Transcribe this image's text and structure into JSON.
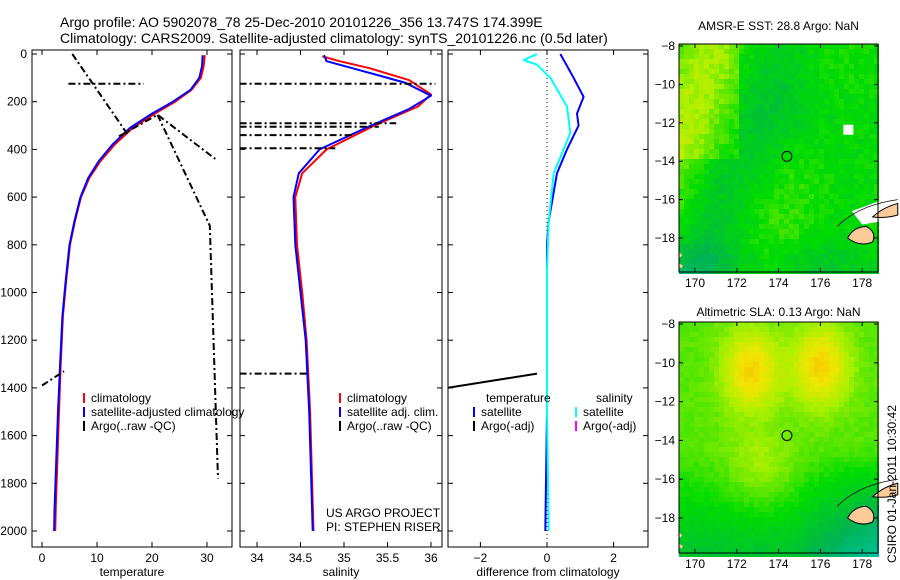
{
  "title_line1": "Argo profile: AO 5902078_78 25-Dec-2010 20101226_356 13.747S 174.399E",
  "title_line2": "Climatology: CARS2009. Satellite-adjusted climatology: synTS_20101226.nc (0.5d later)",
  "credit_line1": "US ARGO PROJECT",
  "credit_line2": "PI: STEPHEN RISER",
  "timestamp": "CSIRO 01-Jan-2011 10:30:42",
  "colors": {
    "climatology": "#ff0000",
    "satellite": "#0000ff",
    "argo": "#000000",
    "salinity_sat": "#00ffff",
    "salinity_argo": "#ff00ff"
  },
  "chart_data": [
    {
      "type": "line",
      "id": "temperature",
      "xlabel": "temperature",
      "xlim": [
        -2,
        32
      ],
      "ylim": [
        2050,
        0
      ],
      "xticks": [
        0,
        10,
        20,
        30
      ],
      "yticks": [
        0,
        200,
        400,
        600,
        800,
        1000,
        1200,
        1400,
        1600,
        1800,
        2000
      ],
      "legend": [
        "climatology",
        "satellite-adjusted climatology",
        "Argo(..raw -QC)"
      ],
      "series": [
        {
          "name": "climatology",
          "color": "#ff0000",
          "points": [
            [
              29.6,
              5
            ],
            [
              29.4,
              50
            ],
            [
              28.9,
              100
            ],
            [
              27.2,
              150
            ],
            [
              24.2,
              200
            ],
            [
              20.5,
              250
            ],
            [
              16.5,
              310
            ],
            [
              13.2,
              380
            ],
            [
              10.6,
              450
            ],
            [
              8.6,
              520
            ],
            [
              7.1,
              600
            ],
            [
              6,
              700
            ],
            [
              5.1,
              800
            ],
            [
              4.4,
              950
            ],
            [
              3.8,
              1100
            ],
            [
              3.4,
              1300
            ],
            [
              3.1,
              1500
            ],
            [
              2.8,
              1700
            ],
            [
              2.5,
              1900
            ],
            [
              2.4,
              2000
            ]
          ]
        },
        {
          "name": "satellite-adjusted climatology",
          "color": "#0000ff",
          "points": [
            [
              29.2,
              5
            ],
            [
              29.1,
              50
            ],
            [
              28.6,
              100
            ],
            [
              27,
              150
            ],
            [
              23.8,
              200
            ],
            [
              20,
              250
            ],
            [
              16,
              310
            ],
            [
              12.8,
              380
            ],
            [
              10.3,
              450
            ],
            [
              8.4,
              520
            ],
            [
              7,
              600
            ],
            [
              5.9,
              700
            ],
            [
              5,
              800
            ],
            [
              4.3,
              950
            ],
            [
              3.7,
              1100
            ],
            [
              3.3,
              1300
            ],
            [
              2.9,
              1500
            ],
            [
              2.6,
              1700
            ],
            [
              2.3,
              1900
            ],
            [
              2.2,
              2000
            ]
          ]
        },
        {
          "name": "Argo(..raw -QC) a",
          "color": "#000000",
          "dash": true,
          "points": [
            [
              5.5,
              0
            ],
            [
              15.5,
              335
            ]
          ]
        },
        {
          "name": "Argo(..raw -QC) b",
          "color": "#000000",
          "dash": true,
          "points": [
            [
              4.8,
              125
            ],
            [
              18.5,
              125
            ]
          ]
        },
        {
          "name": "Argo(..raw -QC) c",
          "color": "#000000",
          "dash": true,
          "points": [
            [
              14,
              345
            ],
            [
              21,
              255
            ],
            [
              31.5,
              440
            ]
          ]
        },
        {
          "name": "Argo(..raw -QC) d",
          "color": "#000000",
          "dash": true,
          "points": [
            [
              21,
              255
            ],
            [
              30.5,
              720
            ],
            [
              32,
              1780
            ]
          ]
        },
        {
          "name": "Argo(..raw -QC) e",
          "color": "#000000",
          "dash": true,
          "points": [
            [
              0,
              1390
            ],
            [
              4,
              1330
            ]
          ]
        }
      ]
    },
    {
      "type": "line",
      "id": "salinity",
      "xlabel": "salinity",
      "xlim": [
        33.8,
        36.1
      ],
      "ylim": [
        2050,
        0
      ],
      "xticks": [
        34,
        34.5,
        35,
        35.5,
        36
      ],
      "legend": [
        "climatology",
        "satellite adj. clim.",
        "Argo(..raw -QC)"
      ],
      "series": [
        {
          "name": "climatology",
          "color": "#ff0000",
          "points": [
            [
              34.75,
              10
            ],
            [
              34.95,
              30
            ],
            [
              35.3,
              60
            ],
            [
              35.75,
              110
            ],
            [
              36,
              170
            ],
            [
              35.85,
              220
            ],
            [
              35.35,
              300
            ],
            [
              34.8,
              400
            ],
            [
              34.52,
              500
            ],
            [
              34.44,
              600
            ],
            [
              34.46,
              800
            ],
            [
              34.52,
              1000
            ],
            [
              34.57,
              1200
            ],
            [
              34.61,
              1500
            ],
            [
              34.65,
              2000
            ]
          ]
        },
        {
          "name": "satellite adj. clim.",
          "color": "#0000ff",
          "points": [
            [
              34.77,
              5
            ],
            [
              34.8,
              30
            ],
            [
              35.1,
              60
            ],
            [
              35.7,
              120
            ],
            [
              36,
              175
            ],
            [
              35.75,
              230
            ],
            [
              35.25,
              310
            ],
            [
              34.72,
              400
            ],
            [
              34.48,
              500
            ],
            [
              34.42,
              600
            ],
            [
              34.44,
              800
            ],
            [
              34.5,
              1000
            ],
            [
              34.56,
              1200
            ],
            [
              34.6,
              1500
            ],
            [
              34.64,
              2000
            ]
          ]
        },
        {
          "name": "Argo a",
          "color": "#000000",
          "dash": true,
          "points": [
            [
              33.8,
              125
            ],
            [
              36.05,
              125
            ]
          ]
        },
        {
          "name": "Argo b",
          "color": "#000000",
          "dash": true,
          "points": [
            [
              33.8,
              290
            ],
            [
              35.6,
              290
            ]
          ]
        },
        {
          "name": "Argo c",
          "color": "#000000",
          "dash": true,
          "points": [
            [
              33.8,
              305
            ],
            [
              35.4,
              305
            ]
          ]
        },
        {
          "name": "Argo d",
          "color": "#000000",
          "dash": true,
          "points": [
            [
              33.8,
              340
            ],
            [
              35.1,
              340
            ]
          ]
        },
        {
          "name": "Argo e",
          "color": "#000000",
          "dash": true,
          "points": [
            [
              33.8,
              395
            ],
            [
              34.9,
              395
            ]
          ]
        },
        {
          "name": "Argo f",
          "color": "#000000",
          "dash": true,
          "points": [
            [
              33.8,
              1340
            ],
            [
              34.6,
              1340
            ]
          ]
        }
      ]
    },
    {
      "type": "line",
      "id": "difference",
      "xlabel": "difference from climatology",
      "xlim": [
        -3,
        3
      ],
      "ylim": [
        2050,
        0
      ],
      "xticks": [
        -2,
        0,
        2
      ],
      "legend_temperature": {
        "heading": "temperature",
        "items": [
          "satellite",
          "Argo(-adj)"
        ]
      },
      "legend_salinity": {
        "heading": "salinity",
        "items": [
          "satellite",
          "Argo(-adj)"
        ]
      },
      "series": [
        {
          "name": "temperature satellite",
          "color": "#0000ff",
          "points": [
            [
              0.4,
              0
            ],
            [
              0.6,
              50
            ],
            [
              0.8,
              100
            ],
            [
              1.1,
              180
            ],
            [
              0.9,
              250
            ],
            [
              0.95,
              300
            ],
            [
              0.6,
              400
            ],
            [
              0.3,
              500
            ],
            [
              0.05,
              700
            ],
            [
              0,
              800
            ],
            [
              0,
              1000
            ],
            [
              0,
              1500
            ],
            [
              -0.05,
              2000
            ]
          ]
        },
        {
          "name": "salinity satellite",
          "color": "#00ffff",
          "points": [
            [
              -0.3,
              0
            ],
            [
              -0.7,
              25
            ],
            [
              -0.3,
              45
            ],
            [
              0.1,
              100
            ],
            [
              0.6,
              220
            ],
            [
              0.7,
              330
            ],
            [
              0.5,
              400
            ],
            [
              0.2,
              500
            ],
            [
              0.05,
              700
            ],
            [
              0,
              900
            ],
            [
              0,
              1500
            ],
            [
              0.05,
              2000
            ]
          ]
        },
        {
          "name": "temperature Argo(-adj)",
          "color": "#000000",
          "points": [
            [
              -3,
              1400
            ],
            [
              -0.3,
              1340
            ]
          ]
        }
      ]
    },
    {
      "type": "heatmap",
      "id": "sst-map",
      "title": "AMSR-E SST: 28.8 Argo: NaN",
      "xticks": [
        170,
        172,
        174,
        176,
        178
      ],
      "yticks": [
        -8,
        -10,
        -12,
        -14,
        -16,
        -18
      ],
      "xlim": [
        169.2,
        179.7
      ],
      "ylim": [
        -19.6,
        -7.9
      ],
      "marker": [
        174.399,
        -13.747
      ]
    },
    {
      "type": "heatmap",
      "id": "sla-map",
      "title": "Altimetric SLA: 0.13 Argo: NaN",
      "xticks": [
        170,
        172,
        174,
        176,
        178
      ],
      "yticks": [
        -8,
        -10,
        -12,
        -14,
        -16,
        -18
      ],
      "xlim": [
        169.2,
        179.7
      ],
      "ylim": [
        -19.6,
        -7.9
      ],
      "marker": [
        174.399,
        -13.747
      ]
    }
  ]
}
